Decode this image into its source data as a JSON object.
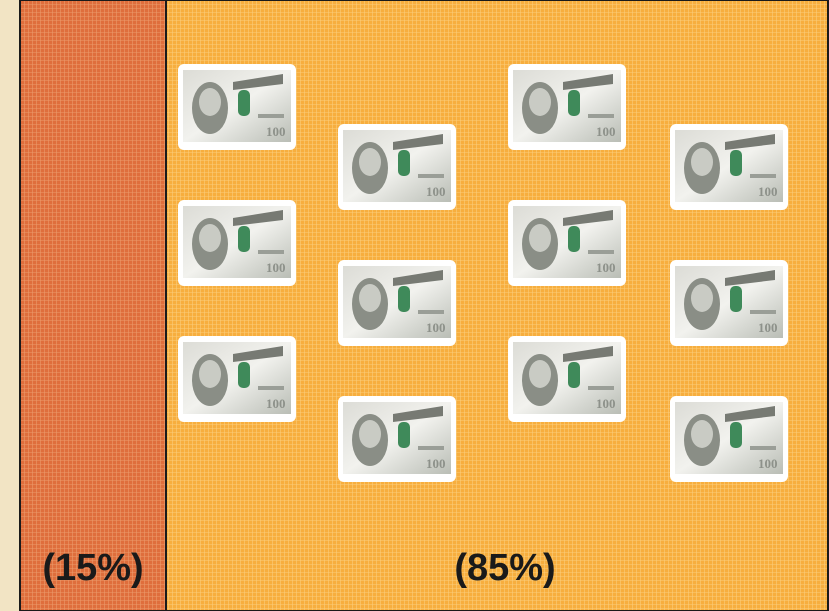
{
  "panels": [
    {
      "label": "(15%)"
    },
    {
      "label": "(85%)"
    }
  ]
}
